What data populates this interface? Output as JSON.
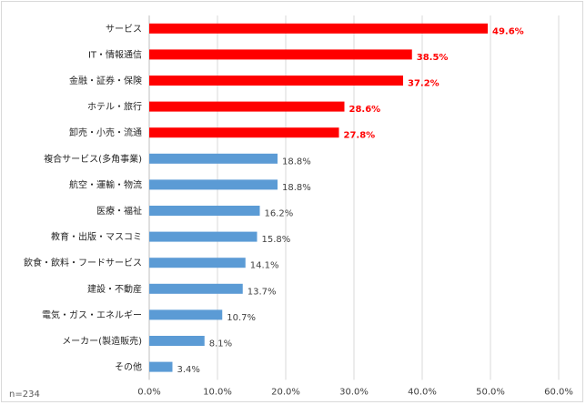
{
  "chart_data": {
    "type": "bar",
    "orientation": "horizontal",
    "categories": [
      "サービス",
      "IT・情報通信",
      "金融・証券・保険",
      "ホテル・旅行",
      "卸売・小売・流通",
      "複合サービス(多角事業)",
      "航空・運輸・物流",
      "医療・福祉",
      "教育・出版・マスコミ",
      "飲食・飲料・フードサービス",
      "建設・不動産",
      "電気・ガス・エネルギー",
      "メーカー(製造販売)",
      "その他"
    ],
    "values": [
      49.6,
      38.5,
      37.2,
      28.6,
      27.8,
      18.8,
      18.8,
      16.2,
      15.8,
      14.1,
      13.7,
      10.7,
      8.1,
      3.4
    ],
    "value_labels": [
      "49.6%",
      "38.5%",
      "37.2%",
      "28.6%",
      "27.8%",
      "18.8%",
      "18.8%",
      "16.2%",
      "15.8%",
      "14.1%",
      "13.7%",
      "10.7%",
      "8.1%",
      "3.4%"
    ],
    "highlight_count": 5,
    "xlim": [
      0,
      60
    ],
    "x_ticks": [
      "0.0%",
      "10.0%",
      "20.0%",
      "30.0%",
      "40.0%",
      "50.0%",
      "60.0%"
    ],
    "grid": true,
    "colors": {
      "highlight": "#ff0000",
      "normal": "#5b9bd5",
      "grid": "#d9d9d9"
    },
    "note": "n=234"
  }
}
